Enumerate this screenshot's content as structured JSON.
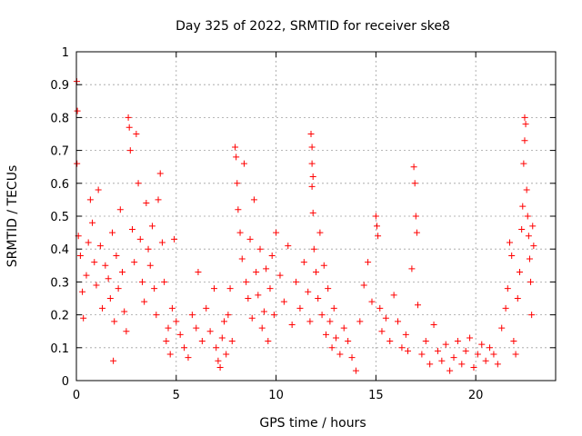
{
  "chart_data": {
    "type": "scatter",
    "title": "Day 325 of 2022, SRMTID for receiver ske8",
    "xlabel": "GPS time / hours",
    "ylabel": "SRMTID / TECUs",
    "xlim": [
      0,
      24
    ],
    "ylim": [
      0,
      1
    ],
    "xticks": [
      0,
      5,
      10,
      15,
      20
    ],
    "xtick_labels": [
      "0",
      "5",
      "10",
      "15",
      "20"
    ],
    "yticks": [
      0,
      0.1,
      0.2,
      0.3,
      0.4,
      0.5,
      0.6,
      0.7,
      0.8,
      0.9,
      1
    ],
    "ytick_labels": [
      "0",
      "0.1",
      "0.2",
      "0.3",
      "0.4",
      "0.5",
      "0.6",
      "0.7",
      "0.8",
      "0.9",
      "1"
    ],
    "grid": true,
    "marker": "+",
    "color": "#ff0000",
    "series": [
      {
        "name": "SRMTID",
        "points": [
          [
            0.02,
            0.91
          ],
          [
            0.05,
            0.82
          ],
          [
            0.03,
            0.66
          ],
          [
            0.1,
            0.44
          ],
          [
            0.2,
            0.38
          ],
          [
            0.3,
            0.27
          ],
          [
            0.35,
            0.19
          ],
          [
            0.5,
            0.32
          ],
          [
            0.6,
            0.42
          ],
          [
            0.7,
            0.55
          ],
          [
            0.8,
            0.48
          ],
          [
            0.9,
            0.36
          ],
          [
            1.0,
            0.29
          ],
          [
            1.1,
            0.58
          ],
          [
            1.2,
            0.41
          ],
          [
            1.3,
            0.22
          ],
          [
            1.45,
            0.35
          ],
          [
            1.6,
            0.31
          ],
          [
            1.7,
            0.25
          ],
          [
            1.8,
            0.45
          ],
          [
            1.9,
            0.18
          ],
          [
            1.85,
            0.06
          ],
          [
            2.0,
            0.38
          ],
          [
            2.1,
            0.28
          ],
          [
            2.2,
            0.52
          ],
          [
            2.3,
            0.33
          ],
          [
            2.4,
            0.21
          ],
          [
            2.5,
            0.15
          ],
          [
            2.6,
            0.8
          ],
          [
            2.65,
            0.77
          ],
          [
            2.7,
            0.7
          ],
          [
            2.8,
            0.46
          ],
          [
            2.9,
            0.36
          ],
          [
            3.0,
            0.75
          ],
          [
            3.1,
            0.6
          ],
          [
            3.2,
            0.43
          ],
          [
            3.3,
            0.3
          ],
          [
            3.4,
            0.24
          ],
          [
            3.5,
            0.54
          ],
          [
            3.6,
            0.4
          ],
          [
            3.7,
            0.35
          ],
          [
            3.8,
            0.47
          ],
          [
            3.9,
            0.28
          ],
          [
            4.0,
            0.2
          ],
          [
            4.1,
            0.55
          ],
          [
            4.2,
            0.63
          ],
          [
            4.3,
            0.42
          ],
          [
            4.4,
            0.3
          ],
          [
            4.5,
            0.12
          ],
          [
            4.6,
            0.16
          ],
          [
            4.7,
            0.08
          ],
          [
            4.8,
            0.22
          ],
          [
            4.9,
            0.43
          ],
          [
            5.0,
            0.18
          ],
          [
            5.2,
            0.14
          ],
          [
            5.4,
            0.1
          ],
          [
            5.6,
            0.07
          ],
          [
            5.8,
            0.2
          ],
          [
            6.0,
            0.16
          ],
          [
            6.1,
            0.33
          ],
          [
            6.3,
            0.12
          ],
          [
            6.5,
            0.22
          ],
          [
            6.7,
            0.15
          ],
          [
            6.9,
            0.28
          ],
          [
            7.0,
            0.1
          ],
          [
            7.1,
            0.06
          ],
          [
            7.2,
            0.04
          ],
          [
            7.3,
            0.13
          ],
          [
            7.4,
            0.18
          ],
          [
            7.5,
            0.08
          ],
          [
            7.6,
            0.2
          ],
          [
            7.7,
            0.28
          ],
          [
            7.8,
            0.12
          ],
          [
            7.95,
            0.71
          ],
          [
            8.0,
            0.68
          ],
          [
            8.05,
            0.6
          ],
          [
            8.1,
            0.52
          ],
          [
            8.2,
            0.45
          ],
          [
            8.3,
            0.37
          ],
          [
            8.4,
            0.66
          ],
          [
            8.5,
            0.3
          ],
          [
            8.6,
            0.25
          ],
          [
            8.7,
            0.43
          ],
          [
            8.8,
            0.19
          ],
          [
            8.9,
            0.55
          ],
          [
            9.0,
            0.33
          ],
          [
            9.1,
            0.26
          ],
          [
            9.2,
            0.4
          ],
          [
            9.3,
            0.16
          ],
          [
            9.4,
            0.21
          ],
          [
            9.5,
            0.34
          ],
          [
            9.6,
            0.12
          ],
          [
            9.7,
            0.28
          ],
          [
            9.8,
            0.38
          ],
          [
            9.9,
            0.2
          ],
          [
            10.0,
            0.45
          ],
          [
            10.2,
            0.32
          ],
          [
            10.4,
            0.24
          ],
          [
            10.6,
            0.41
          ],
          [
            10.8,
            0.17
          ],
          [
            11.0,
            0.3
          ],
          [
            11.2,
            0.22
          ],
          [
            11.4,
            0.36
          ],
          [
            11.6,
            0.27
          ],
          [
            11.7,
            0.18
          ],
          [
            11.75,
            0.75
          ],
          [
            11.8,
            0.71
          ],
          [
            11.8,
            0.66
          ],
          [
            11.85,
            0.62
          ],
          [
            11.8,
            0.59
          ],
          [
            11.85,
            0.51
          ],
          [
            11.9,
            0.4
          ],
          [
            12.0,
            0.33
          ],
          [
            12.1,
            0.25
          ],
          [
            12.2,
            0.45
          ],
          [
            12.3,
            0.2
          ],
          [
            12.4,
            0.35
          ],
          [
            12.5,
            0.14
          ],
          [
            12.6,
            0.28
          ],
          [
            12.7,
            0.18
          ],
          [
            12.8,
            0.1
          ],
          [
            12.9,
            0.22
          ],
          [
            13.0,
            0.13
          ],
          [
            13.2,
            0.08
          ],
          [
            13.4,
            0.16
          ],
          [
            13.6,
            0.12
          ],
          [
            13.8,
            0.07
          ],
          [
            14.0,
            0.03
          ],
          [
            14.2,
            0.18
          ],
          [
            14.4,
            0.29
          ],
          [
            14.6,
            0.36
          ],
          [
            14.8,
            0.24
          ],
          [
            15.0,
            0.5
          ],
          [
            15.05,
            0.47
          ],
          [
            15.1,
            0.44
          ],
          [
            15.2,
            0.22
          ],
          [
            15.3,
            0.15
          ],
          [
            15.5,
            0.19
          ],
          [
            15.7,
            0.12
          ],
          [
            15.9,
            0.26
          ],
          [
            16.1,
            0.18
          ],
          [
            16.3,
            0.1
          ],
          [
            16.5,
            0.14
          ],
          [
            16.6,
            0.09
          ],
          [
            16.8,
            0.34
          ],
          [
            16.9,
            0.65
          ],
          [
            16.95,
            0.6
          ],
          [
            17.0,
            0.5
          ],
          [
            17.05,
            0.45
          ],
          [
            17.1,
            0.23
          ],
          [
            17.3,
            0.08
          ],
          [
            17.5,
            0.12
          ],
          [
            17.7,
            0.05
          ],
          [
            17.9,
            0.17
          ],
          [
            18.1,
            0.09
          ],
          [
            18.3,
            0.06
          ],
          [
            18.5,
            0.11
          ],
          [
            18.7,
            0.03
          ],
          [
            18.9,
            0.07
          ],
          [
            19.1,
            0.12
          ],
          [
            19.3,
            0.05
          ],
          [
            19.5,
            0.09
          ],
          [
            19.7,
            0.13
          ],
          [
            19.9,
            0.04
          ],
          [
            20.1,
            0.08
          ],
          [
            20.3,
            0.11
          ],
          [
            20.5,
            0.06
          ],
          [
            20.7,
            0.1
          ],
          [
            20.9,
            0.08
          ],
          [
            21.1,
            0.05
          ],
          [
            21.3,
            0.16
          ],
          [
            21.5,
            0.22
          ],
          [
            21.6,
            0.28
          ],
          [
            21.7,
            0.42
          ],
          [
            21.8,
            0.38
          ],
          [
            21.9,
            0.12
          ],
          [
            22.0,
            0.08
          ],
          [
            22.1,
            0.25
          ],
          [
            22.2,
            0.33
          ],
          [
            22.3,
            0.46
          ],
          [
            22.35,
            0.53
          ],
          [
            22.4,
            0.66
          ],
          [
            22.45,
            0.73
          ],
          [
            22.45,
            0.8
          ],
          [
            22.5,
            0.78
          ],
          [
            22.55,
            0.58
          ],
          [
            22.6,
            0.5
          ],
          [
            22.65,
            0.44
          ],
          [
            22.7,
            0.37
          ],
          [
            22.75,
            0.3
          ],
          [
            22.8,
            0.2
          ],
          [
            22.85,
            0.47
          ],
          [
            22.9,
            0.41
          ]
        ]
      }
    ]
  }
}
